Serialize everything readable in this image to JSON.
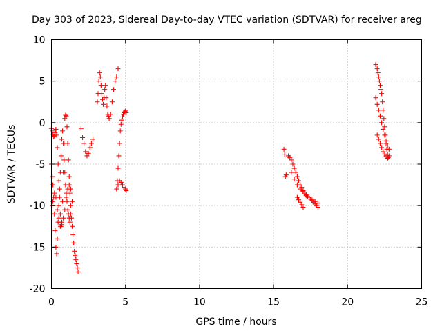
{
  "chart_data": {
    "type": "scatter",
    "title": "Day 303 of 2023, Sidereal Day-to-day VTEC variation (SDTVAR) for receiver areg",
    "xlabel": "GPS time / hours",
    "ylabel": "SDTVAR / TECUs",
    "xlim": [
      0,
      25
    ],
    "ylim": [
      -20,
      10
    ],
    "xticks": [
      0,
      5,
      10,
      15,
      20,
      25
    ],
    "yticks": [
      -20,
      -15,
      -10,
      -5,
      0,
      5,
      10
    ],
    "grid": true,
    "marker": "+",
    "color": "#ff0000",
    "series": [
      {
        "name": "SDTVAR",
        "x": [
          0.0,
          0.05,
          0.1,
          0.15,
          0.2,
          0.25,
          0.3,
          0.35,
          0.4,
          0.45,
          0.5,
          0.55,
          0.6,
          0.65,
          0.7,
          0.75,
          0.8,
          0.85,
          0.9,
          0.95,
          1.0,
          1.05,
          1.1,
          1.15,
          1.2,
          1.25,
          1.3,
          1.35,
          1.4,
          1.45,
          1.5,
          1.55,
          1.6,
          1.65,
          1.7,
          1.75,
          1.8,
          0.0,
          0.05,
          0.1,
          0.15,
          0.2,
          0.25,
          0.3,
          0.35,
          0.4,
          0.45,
          0.5,
          0.55,
          0.6,
          0.65,
          0.7,
          0.75,
          0.8,
          0.85,
          0.9,
          0.95,
          1.0,
          1.05,
          1.1,
          1.15,
          1.2,
          1.25,
          1.3,
          0.05,
          0.1,
          0.2,
          0.3,
          0.4,
          0.5,
          0.6,
          0.7,
          0.8,
          0.9,
          1.0,
          1.1,
          1.2,
          1.3,
          1.4,
          2.0,
          2.1,
          2.2,
          2.3,
          2.4,
          2.5,
          2.6,
          2.7,
          2.8,
          3.1,
          3.15,
          3.2,
          3.25,
          3.3,
          3.35,
          3.4,
          3.45,
          3.5,
          3.55,
          3.6,
          3.65,
          3.7,
          3.75,
          3.8,
          3.85,
          3.9,
          4.0,
          4.1,
          4.2,
          4.3,
          4.4,
          4.5,
          4.4,
          4.45,
          4.5,
          4.55,
          4.6,
          4.65,
          4.7,
          4.75,
          4.8,
          4.85,
          4.9,
          4.95,
          5.0,
          5.05,
          4.5,
          4.6,
          4.7,
          4.8,
          4.9,
          5.0,
          5.05,
          15.7,
          15.75,
          15.8,
          15.85,
          16.0,
          16.1,
          16.2,
          16.3,
          16.4,
          16.5,
          16.6,
          16.7,
          16.8,
          16.9,
          17.0,
          17.1,
          17.2,
          17.3,
          17.4,
          17.5,
          17.6,
          17.7,
          17.8,
          17.9,
          18.0,
          16.2,
          16.4,
          16.6,
          16.8,
          17.0,
          17.2,
          17.4,
          17.6,
          17.8,
          18.0,
          16.6,
          16.7,
          16.8,
          16.9,
          17.0,
          21.9,
          22.0,
          22.05,
          22.1,
          22.15,
          22.2,
          22.25,
          22.3,
          22.35,
          22.4,
          22.45,
          22.5,
          22.55,
          22.6,
          22.65,
          22.7,
          22.75,
          22.8,
          21.9,
          22.0,
          22.1,
          22.2,
          22.3,
          22.4,
          22.5,
          22.6,
          22.7,
          22.8,
          22.0,
          22.1,
          22.2,
          22.3,
          22.4,
          22.5,
          22.6,
          22.7
        ],
        "y": [
          -0.7,
          -1.0,
          -1.4,
          -1.7,
          -1.6,
          -1.2,
          -0.8,
          -1.5,
          -3.0,
          -5.0,
          -7.0,
          -9.0,
          -11.0,
          -12.5,
          -12.0,
          -9.5,
          -6.0,
          -2.5,
          0.5,
          0.9,
          0.8,
          -0.5,
          -2.5,
          -4.5,
          -6.5,
          -8.5,
          -10.0,
          -11.5,
          -12.5,
          -13.5,
          -14.5,
          -15.5,
          -16.0,
          -16.5,
          -17.0,
          -17.5,
          -18.0,
          -5.0,
          -6.5,
          -7.5,
          -9.0,
          -11.0,
          -13.0,
          -15.0,
          -15.8,
          -14.0,
          -12.0,
          -10.0,
          -8.0,
          -6.0,
          -4.0,
          -2.0,
          -1.0,
          -2.5,
          -4.5,
          -6.0,
          -7.5,
          -8.5,
          -9.5,
          -10.5,
          -11.0,
          -11.5,
          -12.0,
          -11.0,
          -10.0,
          -9.5,
          -8.5,
          -9.0,
          -10.5,
          -11.5,
          -12.5,
          -12.3,
          -11.5,
          -10.5,
          -9.0,
          -8.0,
          -7.5,
          -8.0,
          -9.5,
          -0.7,
          -1.8,
          -2.5,
          -3.5,
          -4.0,
          -3.7,
          -3.0,
          -2.5,
          -2.0,
          2.5,
          3.5,
          5.0,
          6.0,
          5.5,
          4.5,
          3.5,
          2.8,
          2.2,
          3.0,
          4.0,
          4.5,
          3.0,
          2.0,
          1.0,
          0.8,
          0.5,
          1.0,
          2.5,
          4.0,
          5.0,
          5.5,
          6.5,
          -8.0,
          -7.0,
          -5.5,
          -4.0,
          -2.5,
          -1.0,
          -0.2,
          0.3,
          0.7,
          1.0,
          1.2,
          1.3,
          1.4,
          1.2,
          -7.5,
          -7.0,
          -7.2,
          -7.5,
          -7.8,
          -8.0,
          -8.2,
          -3.2,
          -3.8,
          -6.5,
          -6.3,
          -4.0,
          -4.2,
          -4.5,
          -5.0,
          -5.5,
          -6.0,
          -6.5,
          -7.0,
          -7.5,
          -7.8,
          -8.2,
          -8.5,
          -8.7,
          -8.9,
          -9.0,
          -9.2,
          -9.4,
          -9.6,
          -9.8,
          -10.0,
          -10.2,
          -6.0,
          -6.8,
          -7.5,
          -8.0,
          -8.3,
          -8.8,
          -9.0,
          -9.3,
          -9.5,
          -9.7,
          -9.0,
          -9.3,
          -9.6,
          -9.9,
          -10.2,
          7.0,
          6.5,
          6.0,
          5.5,
          5.0,
          4.5,
          4.0,
          3.5,
          2.5,
          1.5,
          0.5,
          -0.5,
          -1.5,
          -2.5,
          -3.2,
          -3.8,
          -4.2,
          -4.0,
          3.0,
          2.2,
          1.5,
          0.8,
          0.0,
          -0.8,
          -1.5,
          -2.2,
          -2.8,
          -3.2,
          -1.5,
          -2.0,
          -2.5,
          -3.0,
          -3.5,
          -3.8,
          -4.0,
          -4.3
        ]
      }
    ]
  }
}
